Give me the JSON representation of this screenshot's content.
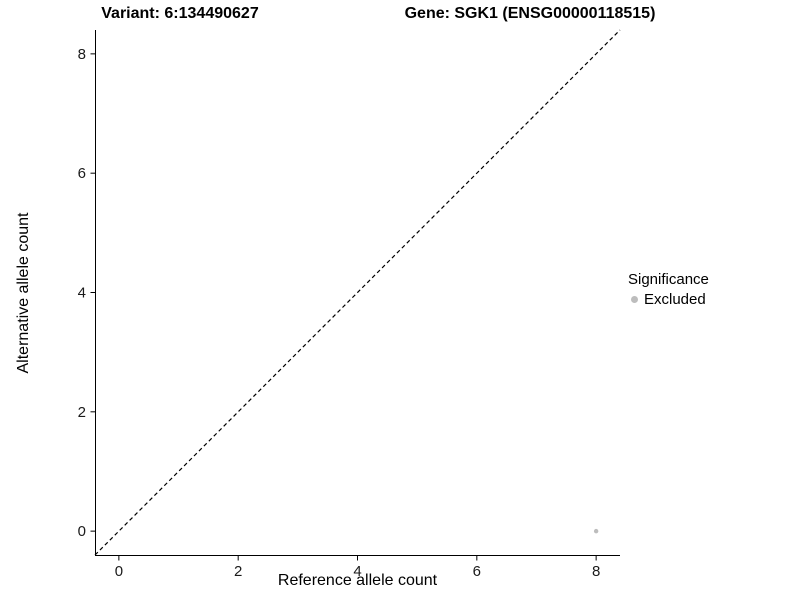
{
  "chart_data": {
    "type": "scatter",
    "titles": {
      "left": "Variant: 6:134490627",
      "right": "Gene: SGK1 (ENSG00000118515)"
    },
    "xlabel": "Reference allele count",
    "ylabel": "Alternative allele count",
    "xlim": [
      -0.4,
      8.4
    ],
    "ylim": [
      -0.4,
      8.4
    ],
    "xticks": [
      0,
      2,
      4,
      6,
      8
    ],
    "yticks": [
      0,
      2,
      4,
      6,
      8
    ],
    "grid": false,
    "axis_color": "#000000",
    "points": [
      {
        "x": 8,
        "y": 0,
        "significance": "Excluded"
      }
    ],
    "point_style": {
      "color": "#bdbdbd",
      "radius": 2.2
    },
    "reference_line": {
      "style": "dashed",
      "color": "#000000",
      "x1": -0.4,
      "y1": -0.4,
      "x2": 8.4,
      "y2": 8.4
    },
    "legend": {
      "title": "Significance",
      "position": "right",
      "entries": [
        {
          "label": "Excluded",
          "color": "#bdbdbd"
        }
      ]
    }
  }
}
